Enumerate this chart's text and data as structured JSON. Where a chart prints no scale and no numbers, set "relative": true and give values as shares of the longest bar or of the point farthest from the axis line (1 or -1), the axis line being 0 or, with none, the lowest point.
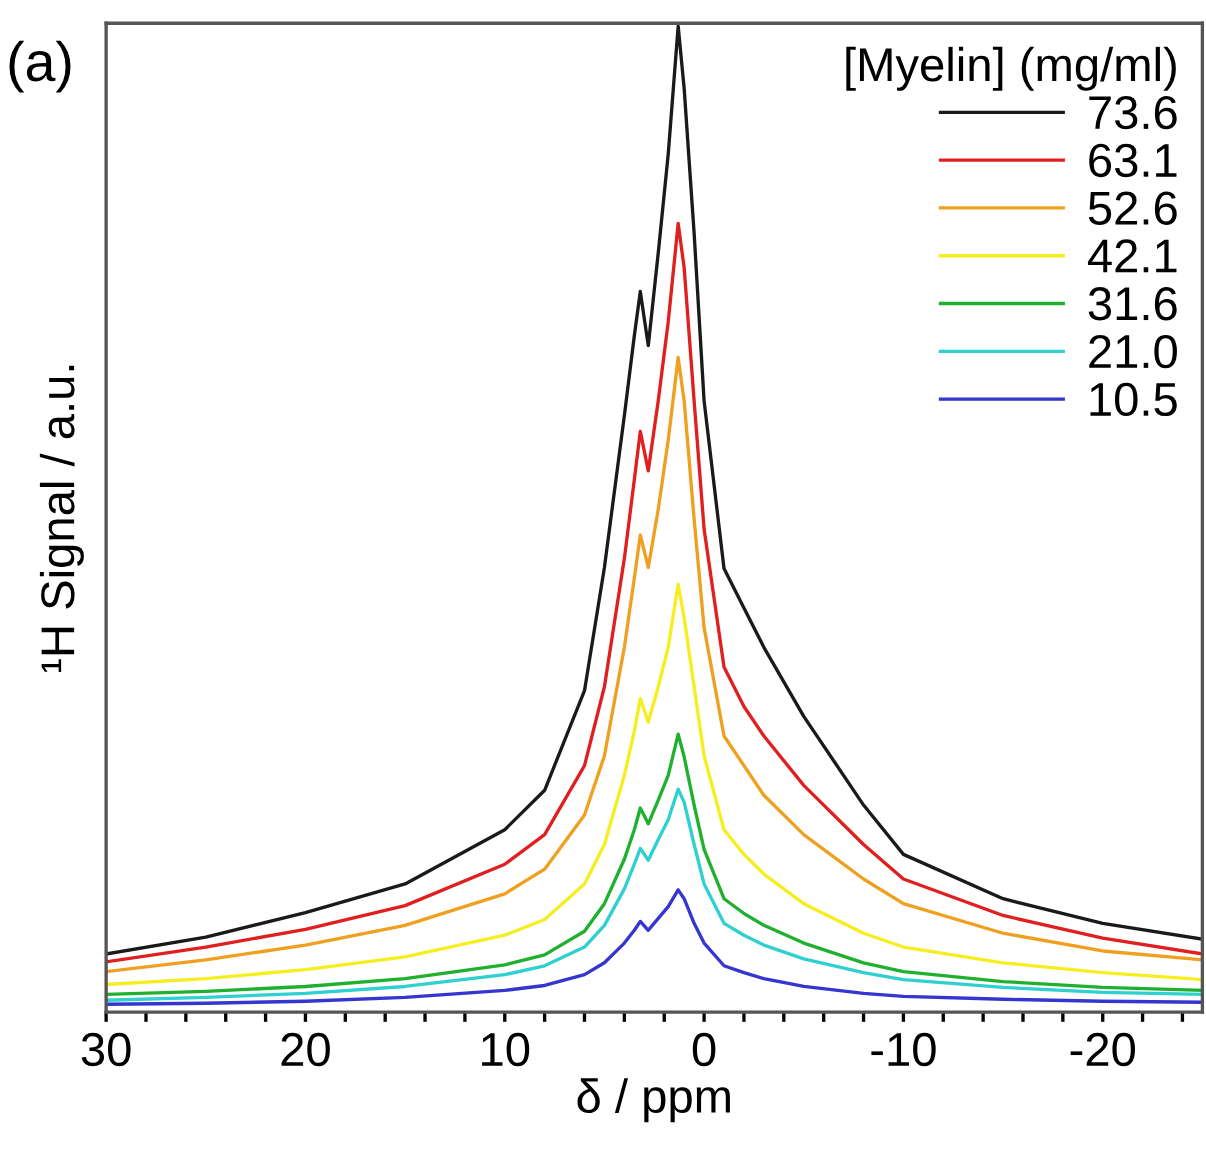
{
  "chart_data": {
    "type": "line",
    "relative": true,
    "xlabel": "δ / ppm",
    "ylabel": "¹H Signal / a.u.",
    "legend_title": "[Myelin] (mg/ml)",
    "legend": "top right",
    "grid": false,
    "marker": "none",
    "line_style": "solid",
    "annotations": [
      "(a)"
    ],
    "x": [
      30,
      25,
      20,
      15,
      10,
      8,
      6,
      5,
      4,
      3.5,
      3.2,
      2.8,
      2.3,
      1.8,
      1.3,
      1.0,
      0.5,
      0,
      -1,
      -2,
      -3,
      -5,
      -8,
      -10,
      -15,
      -20,
      -25
    ],
    "xlim": [
      30,
      -25
    ],
    "xticks": [
      30,
      {
        "value": 28,
        "label": null
      },
      {
        "value": 26,
        "label": null
      },
      {
        "value": 24,
        "label": null
      },
      {
        "value": 22,
        "label": null
      },
      20,
      {
        "value": 18,
        "label": null
      },
      {
        "value": 16,
        "label": null
      },
      {
        "value": 14,
        "label": null
      },
      {
        "value": 12,
        "label": null
      },
      10,
      {
        "value": 8,
        "label": null
      },
      {
        "value": 6,
        "label": null
      },
      {
        "value": 4,
        "label": null
      },
      {
        "value": 2,
        "label": null
      },
      0,
      {
        "value": -2,
        "label": null
      },
      {
        "value": -4,
        "label": null
      },
      {
        "value": -6,
        "label": null
      },
      {
        "value": -8,
        "label": null
      },
      -10,
      {
        "value": -12,
        "label": null
      },
      {
        "value": -14,
        "label": null
      },
      {
        "value": -16,
        "label": null
      },
      {
        "value": -18,
        "label": null
      },
      -20,
      {
        "value": -22,
        "label": null
      },
      {
        "value": -24,
        "label": null
      }
    ],
    "series": [
      {
        "name": "73.6",
        "color": "#1a1a1a",
        "values": [
          0.059,
          0.076,
          0.101,
          0.13,
          0.185,
          0.225,
          0.326,
          0.451,
          0.605,
          0.686,
          0.731,
          0.676,
          0.77,
          0.87,
          1.0,
          0.937,
          0.79,
          0.62,
          0.45,
          0.41,
          0.37,
          0.3,
          0.21,
          0.16,
          0.115,
          0.09,
          0.074
        ]
      },
      {
        "name": "63.1",
        "color": "#e02020",
        "values": [
          0.051,
          0.066,
          0.084,
          0.108,
          0.15,
          0.18,
          0.25,
          0.33,
          0.46,
          0.54,
          0.589,
          0.549,
          0.62,
          0.7,
          0.8,
          0.755,
          0.62,
          0.49,
          0.35,
          0.31,
          0.28,
          0.23,
          0.17,
          0.135,
          0.098,
          0.075,
          0.059
        ]
      },
      {
        "name": "52.6",
        "color": "#f0a020",
        "values": [
          0.041,
          0.053,
          0.068,
          0.088,
          0.12,
          0.145,
          0.2,
          0.26,
          0.37,
          0.44,
          0.484,
          0.451,
          0.51,
          0.58,
          0.664,
          0.62,
          0.5,
          0.39,
          0.28,
          0.25,
          0.22,
          0.18,
          0.135,
          0.11,
          0.08,
          0.062,
          0.053
        ]
      },
      {
        "name": "42.1",
        "color": "#f5ee20",
        "values": [
          0.028,
          0.034,
          0.043,
          0.056,
          0.078,
          0.094,
          0.13,
          0.17,
          0.24,
          0.285,
          0.318,
          0.294,
          0.33,
          0.37,
          0.434,
          0.4,
          0.33,
          0.26,
          0.185,
          0.16,
          0.14,
          0.11,
          0.08,
          0.066,
          0.05,
          0.04,
          0.033
        ]
      },
      {
        "name": "31.6",
        "color": "#20b030",
        "values": [
          0.018,
          0.021,
          0.026,
          0.034,
          0.048,
          0.058,
          0.082,
          0.11,
          0.155,
          0.185,
          0.207,
          0.191,
          0.215,
          0.24,
          0.282,
          0.259,
          0.21,
          0.165,
          0.115,
          0.1,
          0.088,
          0.07,
          0.05,
          0.041,
          0.031,
          0.025,
          0.022
        ]
      },
      {
        "name": "21.0",
        "color": "#30d0d0",
        "values": [
          0.012,
          0.015,
          0.019,
          0.026,
          0.038,
          0.047,
          0.066,
          0.088,
          0.125,
          0.15,
          0.166,
          0.154,
          0.175,
          0.195,
          0.226,
          0.213,
          0.17,
          0.13,
          0.09,
          0.078,
          0.068,
          0.054,
          0.04,
          0.033,
          0.025,
          0.02,
          0.018
        ]
      },
      {
        "name": "10.5",
        "color": "#3535d0",
        "values": [
          0.008,
          0.009,
          0.011,
          0.015,
          0.022,
          0.027,
          0.038,
          0.05,
          0.07,
          0.083,
          0.092,
          0.083,
          0.095,
          0.107,
          0.124,
          0.115,
          0.09,
          0.07,
          0.047,
          0.04,
          0.034,
          0.026,
          0.019,
          0.016,
          0.013,
          0.011,
          0.01
        ]
      }
    ]
  }
}
